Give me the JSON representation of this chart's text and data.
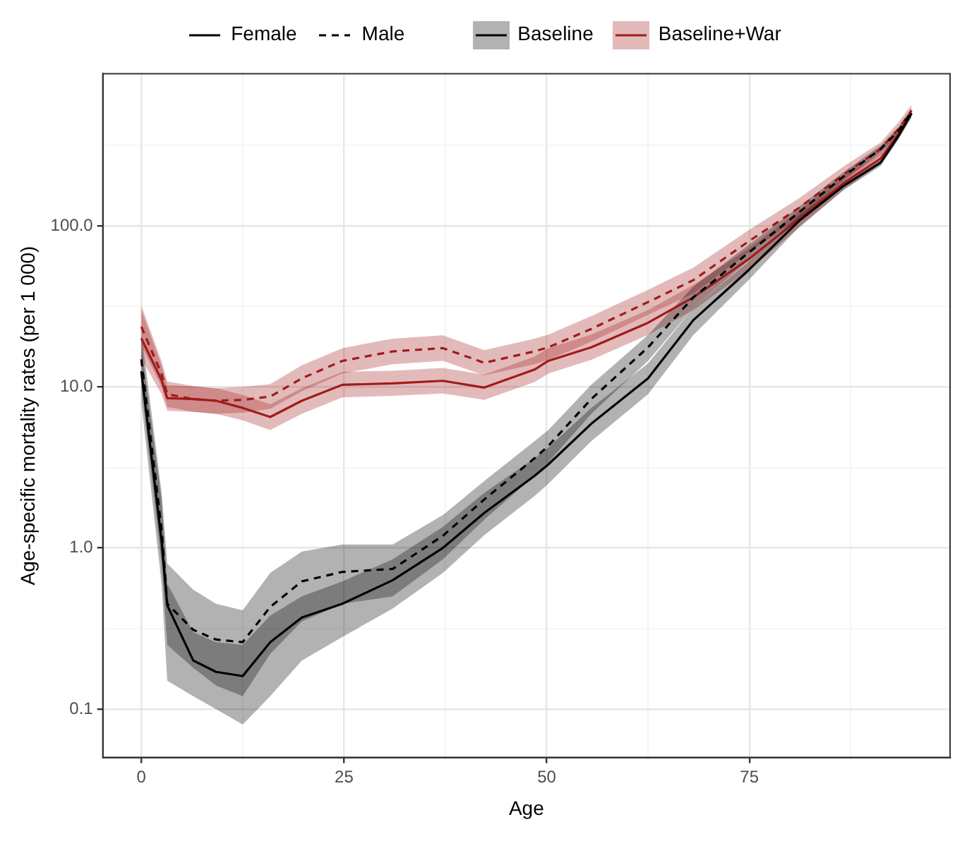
{
  "chart_data": {
    "type": "line",
    "xlabel": "Age",
    "ylabel": "Age-specific mortality rates (per 1 000)",
    "log": "y",
    "grid": true,
    "legend": "top",
    "marker": "none",
    "annotations": [
      "Baseline"
    ],
    "xlim": [
      -4.75,
      99.75
    ],
    "xticks": [
      0,
      {
        "value": 12.5,
        "label": null
      },
      25,
      {
        "value": 37.5,
        "label": null
      },
      50,
      {
        "value": 62.5,
        "label": null
      },
      75,
      {
        "value": 87.5,
        "label": null
      }
    ],
    "ylim": [
      0.05,
      880
    ],
    "yticks": [
      {
        "value": 0.1,
        "label": "0.1"
      },
      {
        "value": 0.316,
        "label": null
      },
      {
        "value": 1,
        "label": "1.0"
      },
      {
        "value": 3.16,
        "label": null
      },
      {
        "value": 10,
        "label": "10.0"
      },
      {
        "value": 31.6,
        "label": null
      },
      {
        "value": 100,
        "label": "100.0"
      },
      {
        "value": 316,
        "label": null
      }
    ],
    "x": [
      0,
      2.5,
      3.2,
      6.4,
      9.2,
      12.5,
      15.9,
      19.8,
      24.8,
      31,
      37.2,
      42.3,
      48.5,
      50.2,
      55.5,
      62.5,
      68.1,
      74.9,
      81.1,
      86.7,
      91.2,
      93.4,
      95
    ],
    "series": [
      {
        "name": "Female",
        "color": "#000000",
        "line_style": "solid",
        "values": [
          12.5,
          1.1,
          0.44,
          0.2,
          0.17,
          0.16,
          0.26,
          0.37,
          0.45,
          0.63,
          1.0,
          1.65,
          2.8,
          3.3,
          5.9,
          11.3,
          26,
          53,
          107,
          178,
          247,
          363,
          500
        ],
        "lower": [
          8,
          0.6,
          0.15,
          0.12,
          0.1,
          0.08,
          0.12,
          0.2,
          0.28,
          0.42,
          0.7,
          1.2,
          2.1,
          2.5,
          4.6,
          9,
          21,
          46,
          98,
          168,
          235,
          345,
          475
        ],
        "upper": [
          18,
          2,
          0.6,
          0.3,
          0.26,
          0.25,
          0.38,
          0.5,
          0.62,
          0.85,
          1.35,
          2.2,
          3.6,
          4.2,
          7.4,
          14,
          31,
          60,
          116,
          190,
          262,
          383,
          525
        ]
      },
      {
        "name": "Male",
        "color": "#000000",
        "line_style": "dashed",
        "values": [
          14.8,
          1.3,
          0.45,
          0.31,
          0.27,
          0.26,
          0.43,
          0.62,
          0.71,
          0.74,
          1.19,
          2.0,
          3.6,
          4.3,
          8.4,
          17.6,
          36,
          68,
          121,
          204,
          300,
          390,
          510
        ],
        "lower": [
          10,
          0.8,
          0.25,
          0.18,
          0.14,
          0.12,
          0.22,
          0.35,
          0.45,
          0.5,
          0.85,
          1.5,
          2.8,
          3.4,
          6.8,
          14.5,
          31,
          61,
          112,
          192,
          285,
          370,
          485
        ],
        "upper": [
          22,
          2.2,
          0.8,
          0.55,
          0.45,
          0.41,
          0.7,
          0.95,
          1.05,
          1.05,
          1.6,
          2.6,
          4.6,
          5.4,
          10.3,
          21,
          42,
          76,
          131,
          217,
          316,
          410,
          535
        ]
      },
      {
        "name": "Baseline+War",
        "color": "#a11a1a",
        "line_style": "solid",
        "values": [
          20,
          11,
          8.5,
          8.4,
          8.2,
          7.4,
          6.5,
          8.2,
          10.3,
          10.5,
          10.9,
          9.9,
          12.8,
          14.5,
          17.6,
          25,
          36,
          62,
          110,
          185,
          262,
          370,
          500
        ],
        "lower": [
          15,
          9,
          7.1,
          7,
          6.8,
          6.2,
          5.4,
          6.8,
          8.6,
          8.8,
          9.1,
          8.3,
          10.7,
          12.1,
          14.7,
          21,
          30,
          53,
          97,
          168,
          242,
          345,
          470
        ],
        "upper": [
          30,
          13.5,
          10.2,
          10.1,
          9.8,
          8.9,
          7.8,
          9.8,
          12.4,
          12.6,
          13.1,
          11.9,
          15.4,
          17.4,
          21.1,
          30,
          43,
          72,
          124,
          204,
          284,
          397,
          535
        ]
      },
      {
        "color": "#a11a1a",
        "line_style": "dashed",
        "values": [
          23.6,
          12,
          9.0,
          8.4,
          8.2,
          8.3,
          8.7,
          11.3,
          14.5,
          16.6,
          17.4,
          14.1,
          16.6,
          17.6,
          22.9,
          33.6,
          46,
          80,
          129,
          209,
          300,
          400,
          520
        ],
        "lower": [
          18,
          10,
          7.5,
          7,
          6.8,
          6.9,
          7.3,
          9.4,
          12.1,
          13.8,
          14.5,
          11.8,
          13.8,
          14.7,
          19.1,
          28,
          38,
          68,
          112,
          186,
          272,
          365,
          480
        ],
        "upper": [
          32,
          14.4,
          10.8,
          10.1,
          9.8,
          10,
          10.4,
          13.6,
          17.4,
          19.9,
          20.9,
          16.9,
          19.9,
          21.1,
          27.5,
          40,
          55,
          94,
          148,
          235,
          330,
          440,
          565
        ]
      }
    ]
  }
}
